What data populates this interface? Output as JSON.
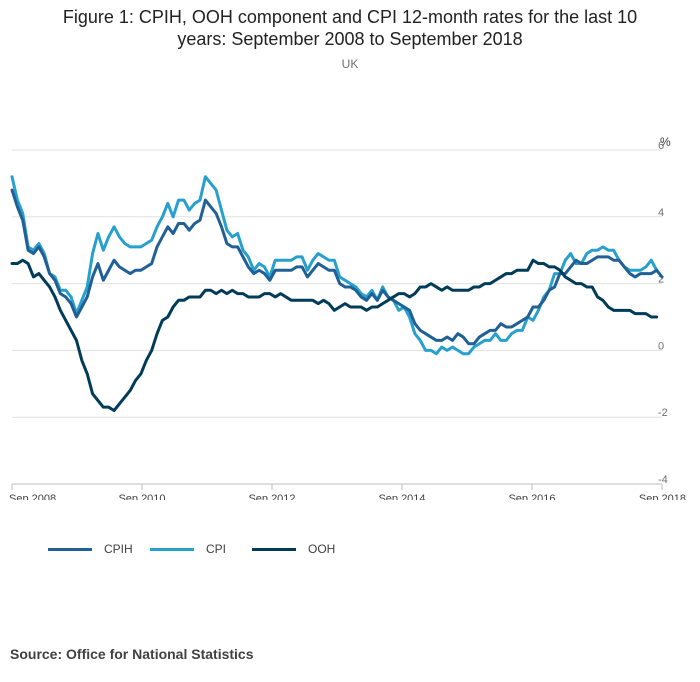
{
  "title_line1": "Figure 1: CPIH, OOH component and CPI 12-month rates for the last 10",
  "title_line2": "years: September 2008 to September 2018",
  "subtitle": "UK",
  "source": "Source: Office for National Statistics",
  "colors": {
    "CPIH": "#206095",
    "CPI": "#27a0cc",
    "OOH": "#003c57",
    "grid": "#e0e0e0",
    "axis": "#bebebe",
    "tick_text": "#707070"
  },
  "chart_data": {
    "type": "line",
    "unit_label": "%",
    "ylim": [
      -4,
      6
    ],
    "yticks": [
      "6",
      "4",
      "2",
      "0",
      "-2",
      "-4"
    ],
    "ytick_values": [
      6,
      4,
      2,
      0,
      -2,
      -4
    ],
    "xtick_labels": [
      "Sep 2008",
      "Sep 2010",
      "Sep 2012",
      "Sep 2014",
      "Sep 2016",
      "Sep 2018"
    ],
    "x_start": "Sep 2008",
    "x_end": "Sep 2018",
    "grid": true,
    "legend_position": "bottom-left",
    "series": [
      {
        "name": "CPIH",
        "values": [
          4.8,
          4.3,
          3.9,
          3.0,
          2.9,
          3.1,
          2.8,
          2.3,
          2.1,
          1.7,
          1.6,
          1.4,
          1.0,
          1.3,
          1.6,
          2.2,
          2.6,
          2.1,
          2.4,
          2.7,
          2.5,
          2.4,
          2.3,
          2.4,
          2.4,
          2.5,
          2.6,
          3.1,
          3.4,
          3.7,
          3.5,
          3.8,
          3.8,
          3.6,
          3.8,
          3.9,
          4.5,
          4.3,
          4.1,
          3.7,
          3.2,
          3.1,
          3.1,
          2.8,
          2.5,
          2.3,
          2.4,
          2.3,
          2.1,
          2.4,
          2.4,
          2.4,
          2.4,
          2.5,
          2.5,
          2.2,
          2.4,
          2.6,
          2.5,
          2.4,
          2.4,
          2.0,
          1.9,
          1.9,
          1.8,
          1.6,
          1.5,
          1.7,
          1.5,
          1.8,
          1.6,
          1.5,
          1.4,
          1.3,
          1.2,
          0.8,
          0.6,
          0.5,
          0.4,
          0.3,
          0.3,
          0.4,
          0.3,
          0.5,
          0.4,
          0.2,
          0.2,
          0.4,
          0.5,
          0.6,
          0.6,
          0.8,
          0.7,
          0.7,
          0.8,
          0.9,
          1.0,
          1.3,
          1.3,
          1.5,
          1.8,
          1.9,
          2.3,
          2.3,
          2.5,
          2.7,
          2.6,
          2.6,
          2.7,
          2.8,
          2.8,
          2.8,
          2.7,
          2.7,
          2.5,
          2.3,
          2.2,
          2.3,
          2.3,
          2.3,
          2.4,
          2.2
        ]
      },
      {
        "name": "CPI",
        "values": [
          5.2,
          4.5,
          4.1,
          3.1,
          3.0,
          3.2,
          2.9,
          2.3,
          2.2,
          1.8,
          1.8,
          1.6,
          1.1,
          1.5,
          1.9,
          2.9,
          3.5,
          3.0,
          3.4,
          3.7,
          3.4,
          3.2,
          3.1,
          3.1,
          3.1,
          3.2,
          3.3,
          3.7,
          4.0,
          4.4,
          4.0,
          4.5,
          4.5,
          4.2,
          4.4,
          4.5,
          5.2,
          5.0,
          4.8,
          4.2,
          3.6,
          3.4,
          3.5,
          3.0,
          2.8,
          2.4,
          2.6,
          2.5,
          2.2,
          2.7,
          2.7,
          2.7,
          2.7,
          2.8,
          2.8,
          2.4,
          2.7,
          2.9,
          2.8,
          2.7,
          2.7,
          2.2,
          2.1,
          2.0,
          1.9,
          1.7,
          1.6,
          1.8,
          1.5,
          1.9,
          1.6,
          1.5,
          1.2,
          1.3,
          1.0,
          0.5,
          0.3,
          0.0,
          0.0,
          -0.1,
          0.1,
          0.0,
          0.1,
          0.0,
          -0.1,
          -0.1,
          0.1,
          0.2,
          0.3,
          0.3,
          0.5,
          0.3,
          0.3,
          0.5,
          0.6,
          0.6,
          1.0,
          0.9,
          1.2,
          1.6,
          1.8,
          2.3,
          2.3,
          2.7,
          2.9,
          2.6,
          2.6,
          2.9,
          3.0,
          3.0,
          3.1,
          3.0,
          3.0,
          2.7,
          2.5,
          2.4,
          2.4,
          2.4,
          2.5,
          2.7,
          2.4
        ]
      },
      {
        "name": "OOH",
        "values": [
          2.6,
          2.6,
          2.7,
          2.6,
          2.2,
          2.3,
          2.1,
          1.9,
          1.6,
          1.2,
          0.9,
          0.6,
          0.3,
          -0.3,
          -0.7,
          -1.3,
          -1.5,
          -1.7,
          -1.7,
          -1.8,
          -1.6,
          -1.4,
          -1.2,
          -0.9,
          -0.7,
          -0.3,
          0.0,
          0.5,
          0.9,
          1.0,
          1.3,
          1.5,
          1.5,
          1.6,
          1.6,
          1.6,
          1.8,
          1.8,
          1.7,
          1.8,
          1.7,
          1.8,
          1.7,
          1.7,
          1.6,
          1.6,
          1.6,
          1.7,
          1.7,
          1.6,
          1.7,
          1.6,
          1.5,
          1.5,
          1.5,
          1.5,
          1.5,
          1.4,
          1.5,
          1.4,
          1.2,
          1.3,
          1.4,
          1.3,
          1.3,
          1.3,
          1.2,
          1.3,
          1.3,
          1.4,
          1.5,
          1.6,
          1.7,
          1.7,
          1.6,
          1.7,
          1.9,
          1.9,
          2.0,
          1.9,
          1.8,
          1.9,
          1.8,
          1.8,
          1.8,
          1.8,
          1.9,
          1.9,
          2.0,
          2.0,
          2.1,
          2.2,
          2.3,
          2.3,
          2.4,
          2.4,
          2.4,
          2.7,
          2.6,
          2.6,
          2.5,
          2.5,
          2.4,
          2.2,
          2.1,
          2.0,
          2.0,
          1.9,
          1.9,
          1.6,
          1.5,
          1.3,
          1.2,
          1.2,
          1.2,
          1.2,
          1.1,
          1.1,
          1.1,
          1.0,
          1.0
        ]
      }
    ]
  }
}
